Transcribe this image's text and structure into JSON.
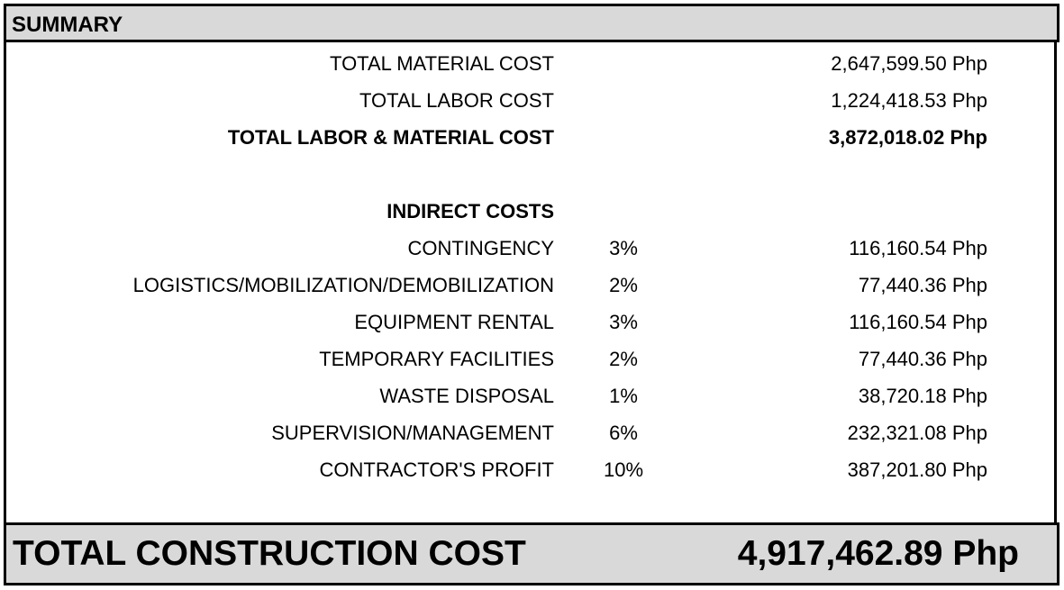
{
  "header": {
    "title": "SUMMARY"
  },
  "totals": [
    {
      "label": "TOTAL MATERIAL COST",
      "value": "2,647,599.50 Php",
      "bold": false
    },
    {
      "label": "TOTAL LABOR COST",
      "value": "1,224,418.53 Php",
      "bold": false
    },
    {
      "label": "TOTAL LABOR & MATERIAL COST",
      "value": "3,872,018.02 Php",
      "bold": true
    }
  ],
  "indirect": {
    "heading": "INDIRECT COSTS",
    "items": [
      {
        "label": "CONTINGENCY",
        "pct": "3%",
        "value": "116,160.54 Php"
      },
      {
        "label": "LOGISTICS/MOBILIZATION/DEMOBILIZATION",
        "pct": "2%",
        "value": "77,440.36 Php"
      },
      {
        "label": "EQUIPMENT RENTAL",
        "pct": "3%",
        "value": "116,160.54 Php"
      },
      {
        "label": "TEMPORARY FACILITIES",
        "pct": "2%",
        "value": "77,440.36 Php"
      },
      {
        "label": "WASTE DISPOSAL",
        "pct": "1%",
        "value": "38,720.18 Php"
      },
      {
        "label": "SUPERVISION/MANAGEMENT",
        "pct": "6%",
        "value": "232,321.08 Php"
      },
      {
        "label": "CONTRACTOR'S PROFIT",
        "pct": "10%",
        "value": "387,201.80 Php"
      }
    ]
  },
  "footer": {
    "label": "TOTAL CONSTRUCTION COST",
    "value": "4,917,462.89 Php"
  },
  "colors": {
    "header_bg": "#d9d9d9",
    "border": "#000000"
  }
}
